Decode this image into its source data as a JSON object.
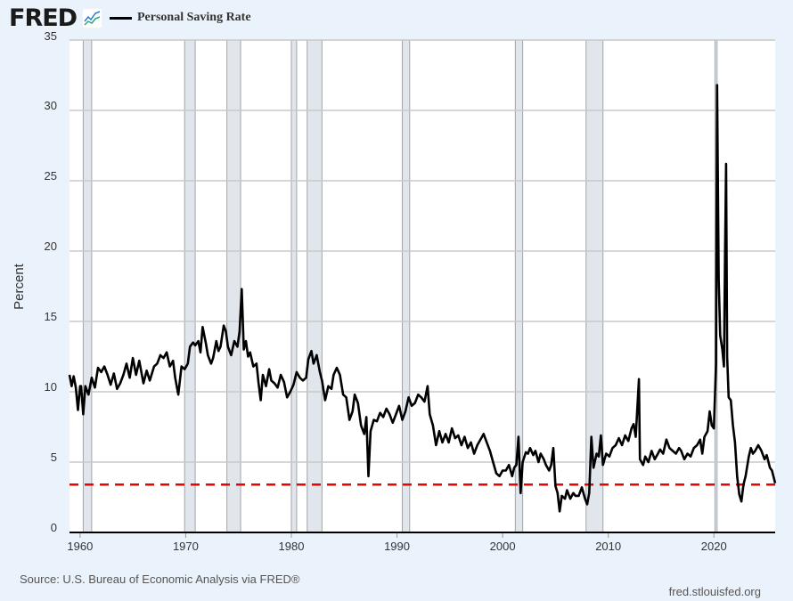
{
  "header": {
    "logo": "FRED",
    "logo_icon": "line-chart-icon"
  },
  "footer": {
    "source": "Source: U.S. Bureau of Economic Analysis via FRED®",
    "site": "fred.stlouisfed.org"
  },
  "chart_data": {
    "type": "line",
    "title": "",
    "ylabel": "Percent",
    "xlabel": "",
    "xlim": [
      1959,
      2025.8
    ],
    "ylim": [
      0,
      35
    ],
    "yticks": [
      "0",
      "5",
      "10",
      "15",
      "20",
      "25",
      "30",
      "35"
    ],
    "xticks": [
      "1960",
      "1970",
      "1980",
      "1990",
      "2000",
      "2010",
      "2020"
    ],
    "grid": "horizontal",
    "legend_placement": "top-left",
    "colors": {
      "series": "#000000",
      "reference": "#ee0000",
      "recession": "#e1e6ec",
      "grid": "#c8c8c8"
    },
    "reference_line": 3.4,
    "recessions": [
      [
        1960.3,
        1961.1
      ],
      [
        1969.9,
        1970.9
      ],
      [
        1973.9,
        1975.2
      ],
      [
        1980.0,
        1980.5
      ],
      [
        1981.5,
        1982.9
      ],
      [
        1990.5,
        1991.2
      ],
      [
        2001.2,
        2001.9
      ],
      [
        2007.9,
        2009.5
      ],
      [
        2020.1,
        2020.3
      ]
    ],
    "series": [
      {
        "name": "Personal Saving Rate",
        "points": [
          [
            1959.0,
            11.2
          ],
          [
            1959.2,
            10.4
          ],
          [
            1959.4,
            11.1
          ],
          [
            1959.6,
            10.3
          ],
          [
            1959.8,
            8.7
          ],
          [
            1960.0,
            10.4
          ],
          [
            1960.1,
            10.4
          ],
          [
            1960.3,
            8.4
          ],
          [
            1960.5,
            10.4
          ],
          [
            1960.8,
            9.8
          ],
          [
            1961.1,
            11.0
          ],
          [
            1961.4,
            10.3
          ],
          [
            1961.7,
            11.7
          ],
          [
            1962.0,
            11.4
          ],
          [
            1962.3,
            11.8
          ],
          [
            1962.6,
            11.2
          ],
          [
            1962.9,
            10.5
          ],
          [
            1963.2,
            11.3
          ],
          [
            1963.5,
            10.2
          ],
          [
            1963.8,
            10.6
          ],
          [
            1964.1,
            11.2
          ],
          [
            1964.4,
            12.0
          ],
          [
            1964.7,
            11.0
          ],
          [
            1965.0,
            12.4
          ],
          [
            1965.3,
            11.2
          ],
          [
            1965.6,
            12.2
          ],
          [
            1966.0,
            10.6
          ],
          [
            1966.3,
            11.5
          ],
          [
            1966.6,
            10.8
          ],
          [
            1967.0,
            11.8
          ],
          [
            1967.3,
            12.0
          ],
          [
            1967.6,
            12.6
          ],
          [
            1967.9,
            12.4
          ],
          [
            1968.2,
            12.8
          ],
          [
            1968.5,
            11.8
          ],
          [
            1968.8,
            12.2
          ],
          [
            1969.0,
            11.0
          ],
          [
            1969.3,
            9.8
          ],
          [
            1969.6,
            11.8
          ],
          [
            1969.9,
            11.6
          ],
          [
            1970.2,
            12.0
          ],
          [
            1970.4,
            13.2
          ],
          [
            1970.7,
            13.5
          ],
          [
            1970.9,
            13.3
          ],
          [
            1971.2,
            13.6
          ],
          [
            1971.4,
            12.8
          ],
          [
            1971.6,
            14.6
          ],
          [
            1971.9,
            13.5
          ],
          [
            1972.1,
            12.6
          ],
          [
            1972.4,
            12.0
          ],
          [
            1972.6,
            12.4
          ],
          [
            1972.9,
            13.6
          ],
          [
            1973.1,
            12.9
          ],
          [
            1973.3,
            13.2
          ],
          [
            1973.6,
            14.7
          ],
          [
            1973.8,
            14.3
          ],
          [
            1974.0,
            13.2
          ],
          [
            1974.3,
            12.6
          ],
          [
            1974.6,
            13.6
          ],
          [
            1974.9,
            13.2
          ],
          [
            1975.1,
            14.3
          ],
          [
            1975.3,
            17.3
          ],
          [
            1975.5,
            13.0
          ],
          [
            1975.7,
            13.6
          ],
          [
            1975.9,
            12.5
          ],
          [
            1976.1,
            12.8
          ],
          [
            1976.4,
            11.8
          ],
          [
            1976.7,
            12.0
          ],
          [
            1976.9,
            10.6
          ],
          [
            1977.1,
            9.4
          ],
          [
            1977.3,
            11.2
          ],
          [
            1977.6,
            10.4
          ],
          [
            1977.9,
            11.6
          ],
          [
            1978.1,
            10.8
          ],
          [
            1978.4,
            10.6
          ],
          [
            1978.7,
            10.3
          ],
          [
            1979.0,
            11.2
          ],
          [
            1979.3,
            10.7
          ],
          [
            1979.6,
            9.6
          ],
          [
            1979.9,
            10.0
          ],
          [
            1980.2,
            10.5
          ],
          [
            1980.5,
            11.4
          ],
          [
            1980.8,
            11.0
          ],
          [
            1981.1,
            10.8
          ],
          [
            1981.4,
            11.0
          ],
          [
            1981.6,
            12.3
          ],
          [
            1981.9,
            12.9
          ],
          [
            1982.1,
            12.0
          ],
          [
            1982.4,
            12.6
          ],
          [
            1982.7,
            11.4
          ],
          [
            1982.9,
            10.8
          ],
          [
            1983.2,
            9.4
          ],
          [
            1983.5,
            10.4
          ],
          [
            1983.8,
            10.2
          ],
          [
            1984.0,
            11.2
          ],
          [
            1984.3,
            11.7
          ],
          [
            1984.6,
            11.2
          ],
          [
            1984.9,
            9.8
          ],
          [
            1985.2,
            9.6
          ],
          [
            1985.5,
            8.0
          ],
          [
            1985.8,
            8.6
          ],
          [
            1986.0,
            9.8
          ],
          [
            1986.3,
            9.2
          ],
          [
            1986.6,
            7.6
          ],
          [
            1986.9,
            7.0
          ],
          [
            1987.1,
            8.2
          ],
          [
            1987.3,
            4.0
          ],
          [
            1987.5,
            7.2
          ],
          [
            1987.8,
            8.0
          ],
          [
            1988.1,
            7.9
          ],
          [
            1988.4,
            8.5
          ],
          [
            1988.7,
            8.2
          ],
          [
            1989.0,
            8.8
          ],
          [
            1989.3,
            8.4
          ],
          [
            1989.6,
            7.8
          ],
          [
            1989.9,
            8.4
          ],
          [
            1990.2,
            9.0
          ],
          [
            1990.5,
            8.0
          ],
          [
            1990.8,
            8.6
          ],
          [
            1991.1,
            9.6
          ],
          [
            1991.4,
            9.0
          ],
          [
            1991.7,
            9.2
          ],
          [
            1992.0,
            9.8
          ],
          [
            1992.3,
            9.6
          ],
          [
            1992.6,
            9.3
          ],
          [
            1992.9,
            10.4
          ],
          [
            1993.1,
            8.4
          ],
          [
            1993.4,
            7.6
          ],
          [
            1993.7,
            6.2
          ],
          [
            1994.0,
            7.2
          ],
          [
            1994.3,
            6.4
          ],
          [
            1994.6,
            7.0
          ],
          [
            1994.9,
            6.4
          ],
          [
            1995.2,
            7.4
          ],
          [
            1995.5,
            6.7
          ],
          [
            1995.8,
            6.9
          ],
          [
            1996.1,
            6.2
          ],
          [
            1996.4,
            6.8
          ],
          [
            1996.7,
            6.0
          ],
          [
            1997.0,
            6.4
          ],
          [
            1997.3,
            5.6
          ],
          [
            1997.6,
            6.2
          ],
          [
            1997.9,
            6.6
          ],
          [
            1998.2,
            7.0
          ],
          [
            1998.5,
            6.4
          ],
          [
            1998.8,
            5.8
          ],
          [
            1999.1,
            5.0
          ],
          [
            1999.4,
            4.2
          ],
          [
            1999.7,
            4.0
          ],
          [
            2000.0,
            4.4
          ],
          [
            2000.3,
            4.4
          ],
          [
            2000.6,
            4.8
          ],
          [
            2000.9,
            4.0
          ],
          [
            2001.1,
            4.6
          ],
          [
            2001.3,
            4.8
          ],
          [
            2001.5,
            6.8
          ],
          [
            2001.7,
            2.8
          ],
          [
            2001.9,
            5.0
          ],
          [
            2002.2,
            5.7
          ],
          [
            2002.4,
            5.6
          ],
          [
            2002.6,
            6.0
          ],
          [
            2002.9,
            5.5
          ],
          [
            2003.1,
            5.8
          ],
          [
            2003.4,
            5.0
          ],
          [
            2003.6,
            5.6
          ],
          [
            2003.9,
            5.2
          ],
          [
            2004.1,
            4.8
          ],
          [
            2004.4,
            4.4
          ],
          [
            2004.6,
            4.8
          ],
          [
            2004.8,
            6.0
          ],
          [
            2005.0,
            3.3
          ],
          [
            2005.2,
            2.8
          ],
          [
            2005.4,
            1.5
          ],
          [
            2005.6,
            2.6
          ],
          [
            2005.9,
            2.4
          ],
          [
            2006.1,
            3.0
          ],
          [
            2006.4,
            2.4
          ],
          [
            2006.7,
            2.8
          ],
          [
            2006.9,
            2.6
          ],
          [
            2007.2,
            2.6
          ],
          [
            2007.5,
            3.2
          ],
          [
            2007.8,
            2.4
          ],
          [
            2008.0,
            2.0
          ],
          [
            2008.2,
            2.8
          ],
          [
            2008.4,
            6.8
          ],
          [
            2008.6,
            4.6
          ],
          [
            2008.9,
            5.6
          ],
          [
            2009.1,
            5.4
          ],
          [
            2009.3,
            6.9
          ],
          [
            2009.5,
            4.8
          ],
          [
            2009.8,
            5.6
          ],
          [
            2010.1,
            5.4
          ],
          [
            2010.4,
            6.0
          ],
          [
            2010.7,
            6.2
          ],
          [
            2011.0,
            6.7
          ],
          [
            2011.3,
            6.2
          ],
          [
            2011.6,
            6.9
          ],
          [
            2011.9,
            6.5
          ],
          [
            2012.2,
            7.4
          ],
          [
            2012.4,
            7.7
          ],
          [
            2012.6,
            6.8
          ],
          [
            2012.9,
            10.9
          ],
          [
            2013.0,
            5.2
          ],
          [
            2013.3,
            4.8
          ],
          [
            2013.5,
            5.4
          ],
          [
            2013.8,
            5.0
          ],
          [
            2014.1,
            5.8
          ],
          [
            2014.4,
            5.2
          ],
          [
            2014.7,
            5.6
          ],
          [
            2014.9,
            5.9
          ],
          [
            2015.2,
            5.6
          ],
          [
            2015.5,
            6.6
          ],
          [
            2015.8,
            6.0
          ],
          [
            2016.1,
            5.8
          ],
          [
            2016.4,
            5.6
          ],
          [
            2016.7,
            6.0
          ],
          [
            2016.9,
            5.8
          ],
          [
            2017.2,
            5.2
          ],
          [
            2017.5,
            5.6
          ],
          [
            2017.8,
            5.4
          ],
          [
            2018.1,
            6.0
          ],
          [
            2018.4,
            6.2
          ],
          [
            2018.7,
            6.6
          ],
          [
            2018.9,
            5.6
          ],
          [
            2019.1,
            6.8
          ],
          [
            2019.4,
            7.2
          ],
          [
            2019.6,
            8.6
          ],
          [
            2019.8,
            7.6
          ],
          [
            2020.0,
            7.4
          ],
          [
            2020.2,
            12.0
          ],
          [
            2020.3,
            31.8
          ],
          [
            2020.45,
            18.0
          ],
          [
            2020.6,
            14.0
          ],
          [
            2020.8,
            13.0
          ],
          [
            2020.95,
            11.8
          ],
          [
            2021.05,
            19.5
          ],
          [
            2021.15,
            26.2
          ],
          [
            2021.25,
            12.5
          ],
          [
            2021.4,
            9.6
          ],
          [
            2021.6,
            9.4
          ],
          [
            2021.8,
            7.6
          ],
          [
            2022.0,
            6.4
          ],
          [
            2022.2,
            4.0
          ],
          [
            2022.4,
            2.7
          ],
          [
            2022.6,
            2.2
          ],
          [
            2022.8,
            3.4
          ],
          [
            2023.0,
            4.0
          ],
          [
            2023.3,
            5.4
          ],
          [
            2023.5,
            6.0
          ],
          [
            2023.7,
            5.6
          ],
          [
            2023.9,
            5.8
          ],
          [
            2024.2,
            6.2
          ],
          [
            2024.5,
            5.8
          ],
          [
            2024.8,
            5.2
          ],
          [
            2025.0,
            5.5
          ],
          [
            2025.3,
            4.6
          ],
          [
            2025.5,
            4.4
          ],
          [
            2025.8,
            3.5
          ]
        ]
      }
    ]
  }
}
